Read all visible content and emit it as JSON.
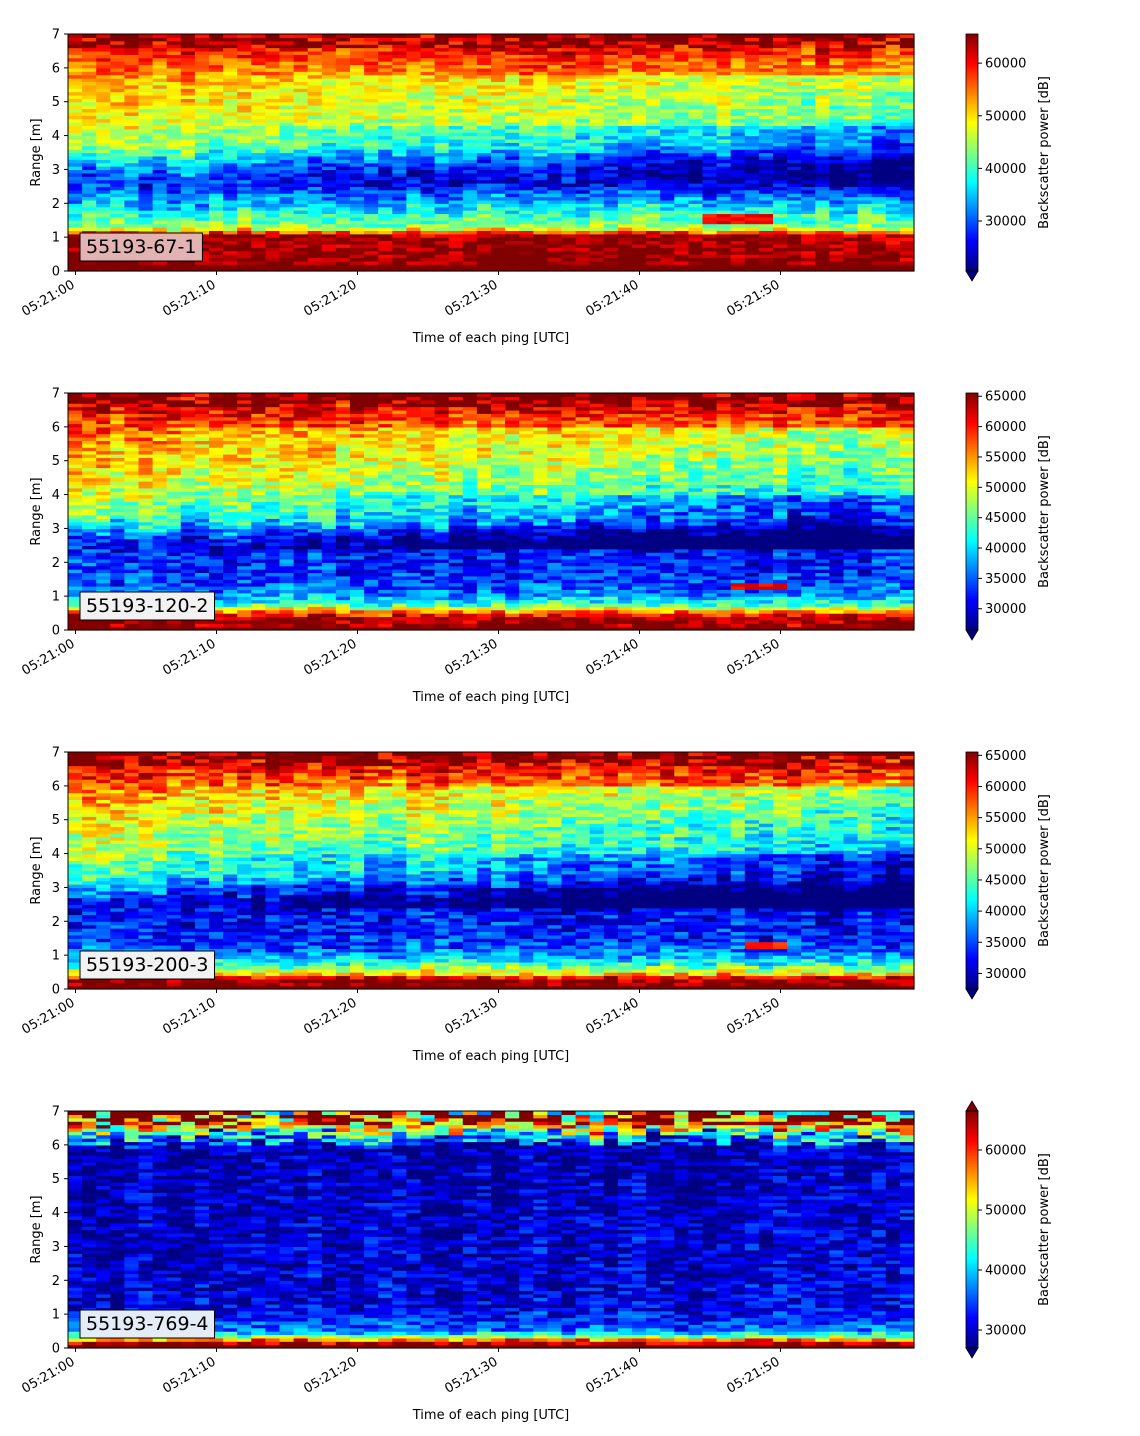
{
  "chart_data": [
    {
      "type": "heatmap",
      "label": "55193-67-1",
      "label_bg": "#e3b3b3",
      "xlabel": "Time of each ping [UTC]",
      "ylabel": "Range [m]",
      "cbar_label": "Backscatter power [dB]",
      "xticks": [
        "05:21:00",
        "05:21:10",
        "05:21:20",
        "05:21:30",
        "05:21:40",
        "05:21:50"
      ],
      "yticks": [
        0,
        1,
        2,
        3,
        4,
        5,
        6,
        7
      ],
      "ylim": [
        0,
        7
      ],
      "cbar_ticks": [
        30000,
        40000,
        50000,
        60000
      ],
      "cbar_range": [
        20500,
        65535
      ],
      "cbar_extend": "min",
      "profile": {
        "bottom": 0.2,
        "layers": [
          {
            "y": 0.6,
            "v": 65000
          },
          {
            "y": 1.05,
            "v": 64000
          },
          {
            "y": 1.3,
            "v": 44000
          },
          {
            "y": 1.7,
            "v": 39000
          },
          {
            "y": 2.1,
            "v": 33000
          },
          {
            "y": 2.7,
            "v": 27000
          },
          {
            "y": 3.2,
            "v": 36000
          },
          {
            "y": 3.8,
            "v": 46000
          },
          {
            "y": 4.6,
            "v": 49000
          },
          {
            "y": 5.3,
            "v": 51000
          },
          {
            "y": 5.9,
            "v": 54000
          },
          {
            "y": 6.4,
            "v": 58000
          },
          {
            "y": 7.0,
            "v": 63000
          }
        ]
      },
      "trend": "upper band fades to blue after 05:21:30",
      "feature": {
        "t0": 45,
        "t1": 50,
        "y0": 1.45,
        "y1": 1.75,
        "v": 60000
      }
    },
    {
      "type": "heatmap",
      "label": "55193-120-2",
      "label_bg": "#f2f2f2",
      "xlabel": "Time of each ping [UTC]",
      "ylabel": "Range [m]",
      "cbar_label": "Backscatter power [dB]",
      "xticks": [
        "05:21:00",
        "05:21:10",
        "05:21:20",
        "05:21:30",
        "05:21:40",
        "05:21:50"
      ],
      "yticks": [
        0,
        1,
        2,
        3,
        4,
        5,
        6,
        7
      ],
      "ylim": [
        0,
        7
      ],
      "cbar_ticks": [
        30000,
        35000,
        40000,
        45000,
        50000,
        55000,
        60000,
        65000
      ],
      "cbar_range": [
        26500,
        65535
      ],
      "cbar_extend": "min",
      "profile": {
        "bottom": 0.1,
        "layers": [
          {
            "y": 0.35,
            "v": 65000
          },
          {
            "y": 0.55,
            "v": 56000
          },
          {
            "y": 0.8,
            "v": 42000
          },
          {
            "y": 1.2,
            "v": 35000
          },
          {
            "y": 1.8,
            "v": 33000
          },
          {
            "y": 2.6,
            "v": 31500
          },
          {
            "y": 3.3,
            "v": 45000
          },
          {
            "y": 4.2,
            "v": 50000
          },
          {
            "y": 5.0,
            "v": 53000
          },
          {
            "y": 5.8,
            "v": 56000
          },
          {
            "y": 6.4,
            "v": 60000
          },
          {
            "y": 7.0,
            "v": 64000
          }
        ]
      },
      "trend": "mid layer turns deep blue after 05:21:30",
      "feature": {
        "t0": 47,
        "t1": 51,
        "y0": 1.25,
        "y1": 1.45,
        "v": 61000
      }
    },
    {
      "type": "heatmap",
      "label": "55193-200-3",
      "label_bg": "#f2f2f2",
      "xlabel": "Time of each ping [UTC]",
      "ylabel": "Range [m]",
      "cbar_label": "Backscatter power [dB]",
      "xticks": [
        "05:21:00",
        "05:21:10",
        "05:21:20",
        "05:21:30",
        "05:21:40",
        "05:21:50"
      ],
      "yticks": [
        0,
        1,
        2,
        3,
        4,
        5,
        6,
        7
      ],
      "ylim": [
        0,
        7
      ],
      "cbar_ticks": [
        30000,
        35000,
        40000,
        45000,
        50000,
        55000,
        60000,
        65000
      ],
      "cbar_range": [
        27500,
        65535
      ],
      "cbar_extend": "min",
      "profile": {
        "bottom": 0.1,
        "layers": [
          {
            "y": 0.3,
            "v": 65000
          },
          {
            "y": 0.45,
            "v": 52000
          },
          {
            "y": 0.8,
            "v": 42000
          },
          {
            "y": 1.2,
            "v": 35000
          },
          {
            "y": 1.8,
            "v": 33000
          },
          {
            "y": 2.6,
            "v": 32000
          },
          {
            "y": 3.3,
            "v": 44000
          },
          {
            "y": 4.2,
            "v": 48000
          },
          {
            "y": 5.0,
            "v": 51000
          },
          {
            "y": 5.8,
            "v": 55000
          },
          {
            "y": 6.4,
            "v": 60000
          },
          {
            "y": 7.0,
            "v": 64000
          }
        ]
      },
      "trend": "mid layer turns deep blue after 05:21:30",
      "feature": {
        "t0": 48,
        "t1": 51,
        "y0": 1.2,
        "y1": 1.35,
        "v": 59000
      }
    },
    {
      "type": "heatmap",
      "label": "55193-769-4",
      "label_bg": "#e3ecf7",
      "xlabel": "Time of each ping [UTC]",
      "ylabel": "Range [m]",
      "cbar_label": "Backscatter power [dB]",
      "xticks": [
        "05:21:00",
        "05:21:10",
        "05:21:20",
        "05:21:30",
        "05:21:40",
        "05:21:50"
      ],
      "yticks": [
        0,
        1,
        2,
        3,
        4,
        5,
        6,
        7
      ],
      "ylim": [
        0,
        7
      ],
      "cbar_ticks": [
        30000,
        40000,
        50000,
        60000
      ],
      "cbar_range": [
        27000,
        66500
      ],
      "cbar_extend": "both",
      "profile": {
        "bottom": 0.1,
        "layers": [
          {
            "y": 0.2,
            "v": 64000
          },
          {
            "y": 0.3,
            "v": 50000
          },
          {
            "y": 0.55,
            "v": 36000
          },
          {
            "y": 1.2,
            "v": 31000
          },
          {
            "y": 5.9,
            "v": 29000
          },
          {
            "y": 6.3,
            "v": 40000
          },
          {
            "y": 6.6,
            "v": 58000
          },
          {
            "y": 7.0,
            "v": 44000
          }
        ]
      },
      "trend": "lower region uniformly deep blue",
      "feature": null
    }
  ]
}
